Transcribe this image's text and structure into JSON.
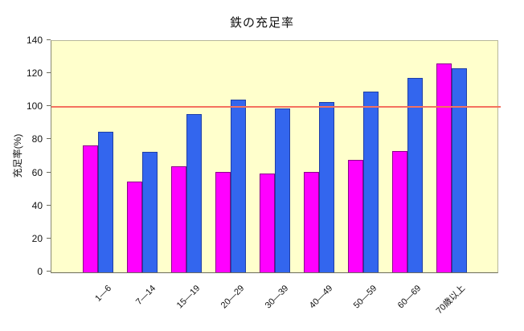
{
  "page": {
    "background": "#ffffff"
  },
  "chart_data": {
    "type": "bar",
    "title": "鉄の充足率",
    "ylabel": "充足率(%)",
    "xlabel": "",
    "ylim": [
      0,
      140
    ],
    "yticks": [
      0,
      20,
      40,
      60,
      80,
      100,
      120,
      140
    ],
    "categories": [
      "1—6",
      "7—14",
      "15—19",
      "20—29",
      "30—39",
      "40—49",
      "50—59",
      "60—69",
      "70歳以上"
    ],
    "series": [
      {
        "name": "series-1-magenta",
        "fill": "#FF00FF",
        "stroke": "#8B008B",
        "values": [
          77,
          55,
          64,
          61,
          60,
          61,
          68,
          73.5,
          126.5
        ]
      },
      {
        "name": "series-2-blue",
        "fill": "#3366EE",
        "stroke": "#1F3FA6",
        "values": [
          85,
          73,
          96,
          104.5,
          99,
          103,
          109.5,
          117.5,
          123.5
        ]
      }
    ],
    "reference_line": {
      "value": 100,
      "color": "#F4715F"
    },
    "plot_background": "#FFFFCC",
    "grid": false,
    "legend": "none"
  }
}
